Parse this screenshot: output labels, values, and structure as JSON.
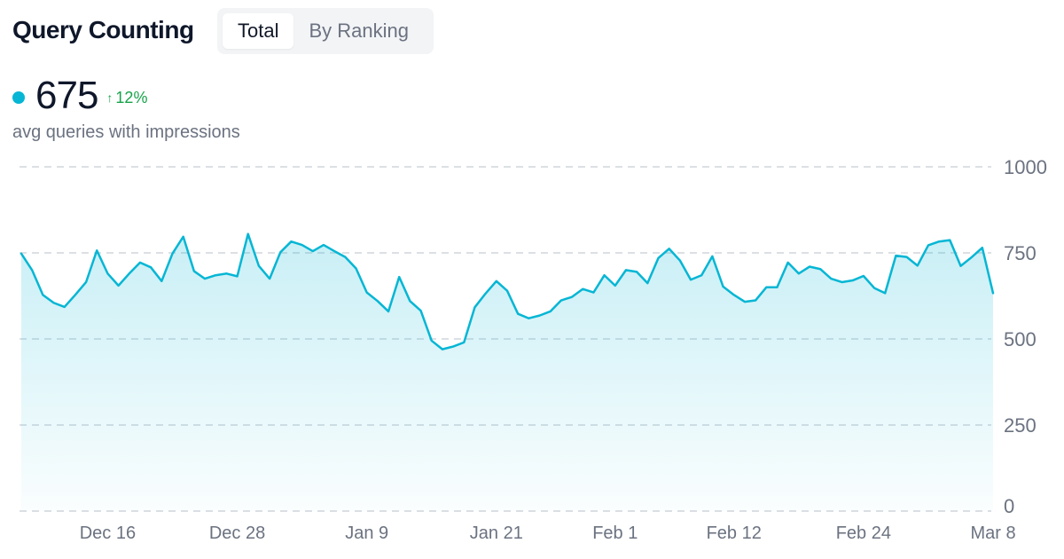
{
  "header": {
    "title": "Query Counting",
    "tabs": [
      {
        "label": "Total",
        "active": true
      },
      {
        "label": "By Ranking",
        "active": false
      }
    ]
  },
  "metric": {
    "value": "675",
    "change": "12%",
    "change_direction": "up",
    "change_color": "#16a34a",
    "subtitle": "avg queries with impressions",
    "dot_color": "#06b6d4"
  },
  "chart_data": {
    "type": "area",
    "line_color": "#06b6d4",
    "fill_color": "#06b6d4",
    "grid": true,
    "grid_style": "dashed",
    "ylim": [
      0,
      1000
    ],
    "yticks": [
      "0",
      "250",
      "500",
      "750",
      "1000"
    ],
    "y_axis_side": "right",
    "xticks": [
      {
        "label": "Dec 16",
        "index": 8
      },
      {
        "label": "Dec 28",
        "index": 20
      },
      {
        "label": "Jan 9",
        "index": 32
      },
      {
        "label": "Jan 21",
        "index": 44
      },
      {
        "label": "Feb 1",
        "index": 55
      },
      {
        "label": "Feb 12",
        "index": 66
      },
      {
        "label": "Feb 24",
        "index": 78
      },
      {
        "label": "Mar 8",
        "index": 90
      }
    ],
    "series": [
      {
        "values": [
          748,
          700,
          628,
          605,
          593,
          628,
          665,
          757,
          690,
          655,
          690,
          722,
          708,
          668,
          748,
          797,
          697,
          675,
          685,
          690,
          682,
          805,
          712,
          675,
          752,
          783,
          773,
          755,
          773,
          755,
          738,
          705,
          635,
          610,
          580,
          680,
          610,
          582,
          495,
          470,
          478,
          490,
          592,
          632,
          668,
          640,
          573,
          560,
          568,
          580,
          612,
          622,
          645,
          635,
          685,
          655,
          700,
          695,
          662,
          735,
          762,
          728,
          672,
          685,
          740,
          652,
          628,
          608,
          612,
          650,
          650,
          722,
          690,
          710,
          703,
          675,
          665,
          670,
          683,
          648,
          633,
          742,
          738,
          713,
          772,
          783,
          787,
          712,
          737,
          765,
          633
        ]
      }
    ]
  }
}
